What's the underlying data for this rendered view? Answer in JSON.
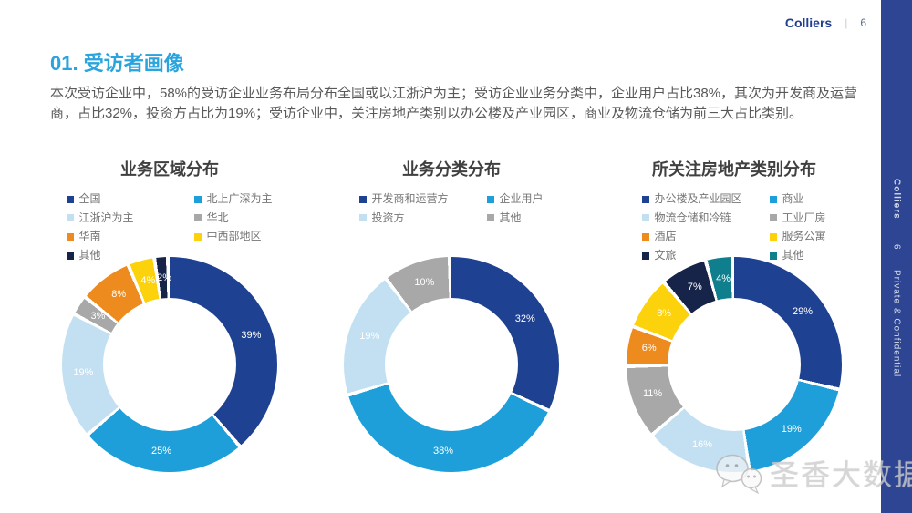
{
  "header": {
    "brand": "Colliers",
    "divider": "|",
    "page": "6"
  },
  "sidebar": {
    "brand": "Colliers",
    "page": "6",
    "confidential": "Private & Confidential"
  },
  "page": {
    "title": "01. 受访者画像",
    "paragraph": "本次受访企业中，58%的受访企业业务布局分布全国或以江浙沪为主；受访企业业务分类中，企业用户占比38%，其次为开发商及运营商，占比32%，投资方占比为19%；受访企业中，关注房地产类别以办公楼及产业园区，商业及物流仓储为前三大占比类别。"
  },
  "watermark": {
    "text": "圣香大数据",
    "icon": "wechat-icon"
  },
  "colors": {
    "accent_cyan": "#29A4DE",
    "brand_blue": "#1F3F8F",
    "sidebar_blue": "#2E4593",
    "dark_blue": "#1F4191",
    "bright_blue": "#1E9FD9",
    "light_blue": "#C2E0F2",
    "gray": "#A8A8A8",
    "orange": "#EE8B1E",
    "yellow": "#FCD20C",
    "navy": "#17244A",
    "teal": "#0F7F8D"
  },
  "chart_data": [
    {
      "type": "pie",
      "subtype": "donut",
      "title": "业务区域分布",
      "legend_position": "top",
      "segments": [
        {
          "label": "全国",
          "value": 39,
          "color": "#1F4191"
        },
        {
          "label": "北上广深为主",
          "value": 25,
          "color": "#1E9FD9"
        },
        {
          "label": "江浙沪为主",
          "value": 19,
          "color": "#C2E0F2"
        },
        {
          "label": "华北",
          "value": 3,
          "color": "#A8A8A8"
        },
        {
          "label": "华南",
          "value": 8,
          "color": "#EE8B1E"
        },
        {
          "label": "中西部地区",
          "value": 4,
          "color": "#FCD20C"
        },
        {
          "label": "其他",
          "value": 2,
          "color": "#17244A"
        }
      ]
    },
    {
      "type": "pie",
      "subtype": "donut",
      "title": "业务分类分布",
      "legend_position": "top",
      "segments": [
        {
          "label": "开发商和运营方",
          "value": 32,
          "color": "#1F4191"
        },
        {
          "label": "企业用户",
          "value": 38,
          "color": "#1E9FD9"
        },
        {
          "label": "投资方",
          "value": 19,
          "color": "#C2E0F2"
        },
        {
          "label": "其他",
          "value": 10,
          "color": "#A8A8A8"
        }
      ]
    },
    {
      "type": "pie",
      "subtype": "donut",
      "title": "所关注房地产类别分布",
      "legend_position": "top",
      "segments": [
        {
          "label": "办公楼及产业园区",
          "value": 29,
          "color": "#1F4191"
        },
        {
          "label": "商业",
          "value": 19,
          "color": "#1E9FD9"
        },
        {
          "label": "物流仓储和冷链",
          "value": 16,
          "color": "#C2E0F2"
        },
        {
          "label": "工业厂房",
          "value": 11,
          "color": "#A8A8A8"
        },
        {
          "label": "酒店",
          "value": 6,
          "color": "#EE8B1E"
        },
        {
          "label": "服务公寓",
          "value": 8,
          "color": "#FCD20C"
        },
        {
          "label": "文旅",
          "value": 7,
          "color": "#17244A"
        },
        {
          "label": "其他",
          "value": 4,
          "color": "#0F7F8D"
        }
      ]
    }
  ]
}
